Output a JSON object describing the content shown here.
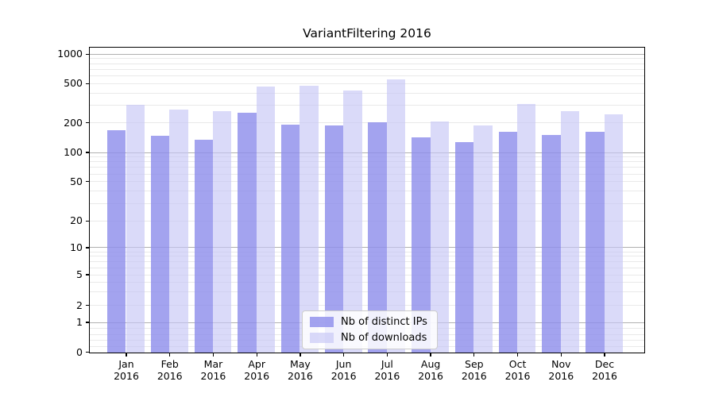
{
  "chart_data": {
    "type": "bar",
    "title": "VariantFiltering 2016",
    "categories": [
      "Jan",
      "Feb",
      "Mar",
      "Apr",
      "May",
      "Jun",
      "Jul",
      "Aug",
      "Sep",
      "Oct",
      "Nov",
      "Dec"
    ],
    "x_tick_line2": "2016",
    "series": [
      {
        "name": "Nb of distinct IPs",
        "color": "#a3a3ef",
        "color_rgba": "rgba(143,143,236,0.82)",
        "values": [
          170,
          148,
          136,
          255,
          192,
          191,
          206,
          145,
          129,
          164,
          152,
          164
        ]
      },
      {
        "name": "Nb of downloads",
        "color": "#dadaf6",
        "color_rgba": "rgba(198,198,246,0.65)",
        "values": [
          310,
          277,
          266,
          475,
          483,
          432,
          556,
          210,
          189,
          312,
          267,
          245
        ]
      }
    ],
    "yscale": "symlog",
    "ylim": [
      0,
      1000
    ],
    "yticks": [
      0,
      1,
      2,
      5,
      10,
      20,
      50,
      100,
      200,
      500,
      1000
    ],
    "ytick_labels": [
      "0",
      "1",
      "2",
      "5",
      "10",
      "20",
      "50",
      "100",
      "200",
      "500",
      "1000"
    ],
    "grid": "on",
    "grid_major_values": [
      1,
      10,
      100,
      1000
    ],
    "grid_minor_values": [
      0.2,
      0.4,
      0.6,
      0.8,
      2,
      3,
      4,
      5,
      6,
      7,
      8,
      9,
      20,
      30,
      40,
      50,
      60,
      70,
      80,
      90,
      200,
      300,
      400,
      500,
      600,
      700,
      800,
      900
    ],
    "legend_position": "lower center (inside plot)",
    "colors": {
      "axis": "#000000",
      "grid_major": "#b0b0b0",
      "grid_minor": "#e9e9e9",
      "background": "#ffffff"
    }
  }
}
